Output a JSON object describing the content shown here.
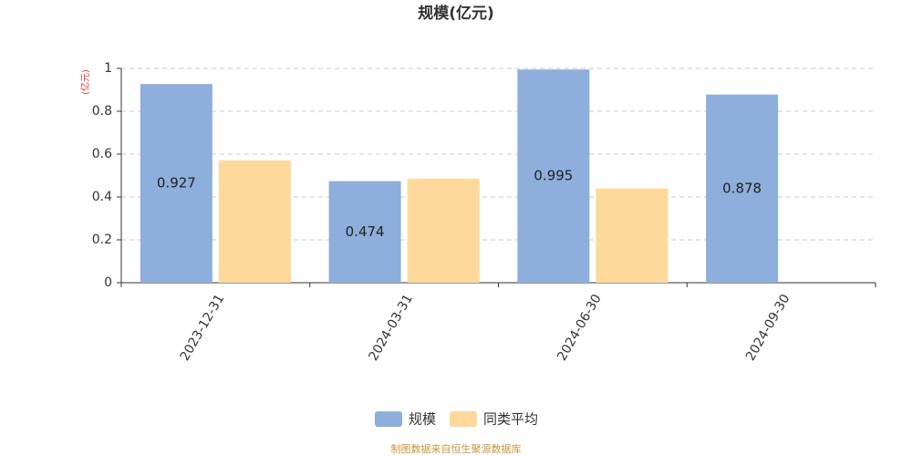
{
  "chart_data": {
    "type": "bar",
    "title": "规模(亿元)",
    "y_axis_unit": "(亿元)",
    "categories": [
      "2023-12-31",
      "2024-03-31",
      "2024-06-30",
      "2024-09-30"
    ],
    "series": [
      {
        "name": "规模",
        "color": "#8eaedb",
        "values": [
          0.927,
          0.474,
          0.995,
          0.878
        ],
        "show_labels": true
      },
      {
        "name": "同类平均",
        "color": "#fed99b",
        "values": [
          0.57,
          0.485,
          0.44,
          null
        ],
        "show_labels": false
      }
    ],
    "ylim": [
      0,
      1
    ],
    "yticks": [
      0,
      0.2,
      0.4,
      0.6,
      0.8,
      1
    ],
    "grid": true,
    "footer": "制图数据来自恒生聚源数据库"
  }
}
